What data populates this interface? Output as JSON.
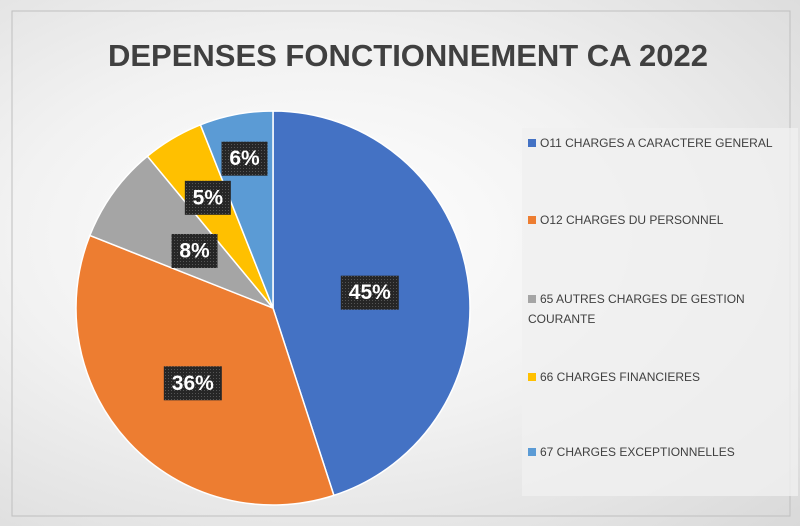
{
  "chart_data": {
    "type": "pie",
    "title": "DEPENSES FONCTIONNEMENT CA 2022",
    "categories": [
      "O11 CHARGES A CARACTERE GENERAL",
      "O12 CHARGES DU PERSONNEL",
      "65 AUTRES CHARGES DE GESTION COURANTE",
      "66 CHARGES FINANCIERES",
      "67 CHARGES EXCEPTIONNELLES"
    ],
    "values": [
      45,
      36,
      8,
      5,
      6
    ],
    "value_labels": [
      "45%",
      "36%",
      "8%",
      "5%",
      "6%"
    ],
    "colors": [
      "#4472c4",
      "#ed7d31",
      "#a5a5a5",
      "#ffc000",
      "#5b9bd5"
    ],
    "legend": "right"
  }
}
